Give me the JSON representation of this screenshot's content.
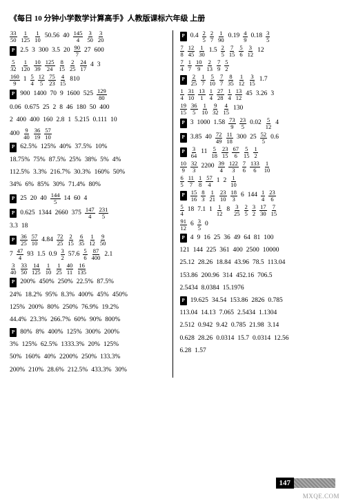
{
  "title": "《每日 10 分钟小学数学计算高手》人教版课标六年级  上册",
  "L": [
    [
      "f:33/50",
      "f:1/125",
      "f:1/10",
      "50.56",
      "40",
      "f:145/4",
      "f:3/50",
      "f:3/20"
    ],
    [
      "T",
      "2.5",
      "3",
      "300",
      "3.5",
      "20",
      "f:90/7",
      "27",
      "600"
    ],
    [
      "f:5/32",
      "f:1/120",
      "f:10/39",
      "f:125/24",
      "f:8/15",
      "f:2/25",
      "f:24/17",
      "4",
      "3"
    ],
    [
      "f:160/9",
      "1",
      "f:5/4",
      "f:12/5",
      "f:75/23",
      "f:4/15",
      "810"
    ],
    [
      "T",
      "900",
      "1400",
      "70",
      "9",
      "1600",
      "525",
      "f:129/80"
    ],
    [
      "0.06",
      "0.675",
      "25",
      "2",
      "8",
      "46",
      "180",
      "50",
      "400"
    ],
    [
      "2",
      "400",
      "400",
      "160",
      "2.8",
      "1",
      "5.215",
      "0.111",
      "10"
    ],
    [
      "400",
      "f:9/40",
      "f:36/19",
      "f:57/10"
    ],
    [
      "T",
      "62.5%",
      "125%",
      "40%",
      "37.5%",
      "10%"
    ],
    [
      "18.75%",
      "75%",
      "87.5%",
      "25%",
      "38%",
      "5%",
      "4%"
    ],
    [
      "112.5%",
      "3.3%",
      "216.7%",
      "30.3%",
      "160%",
      "50%"
    ],
    [
      "34%",
      "6%",
      "85%",
      "30%",
      "71.4%",
      "80%"
    ],
    [
      "T",
      "25",
      "20",
      "40",
      "f:144/5",
      "14",
      "60",
      "4"
    ],
    [
      "T",
      "0.625",
      "1344",
      "2660",
      "375",
      "f:147/4",
      "f:231/5"
    ],
    [
      "3.3",
      "18"
    ],
    [
      "T",
      "f:36/25",
      "f:57/10",
      "4.84",
      "f:72/25",
      "f:2/15",
      "f:6/35",
      "f:1/12",
      "f:9/50"
    ],
    [
      "7",
      "f:47/4",
      "93",
      "1.5",
      "0.9",
      "f:3/2",
      "57.6",
      "f:5/6",
      "f:87/400",
      "2.1"
    ],
    [
      "f:3/40",
      "f:33/50",
      "f:14/125",
      "f:1/10",
      "f:1/25",
      "f:40/11",
      "f:16/135"
    ],
    [
      "T",
      "200%",
      "450%",
      "250%",
      "22.5%",
      "87.5%"
    ],
    [
      "24%",
      "18.2%",
      "95%",
      "8.3%",
      "400%",
      "45%",
      "450%"
    ],
    [
      "125%",
      "200%",
      "80%",
      "250%",
      "76.9%",
      "19.2%"
    ],
    [
      "44.4%",
      "23.3%",
      "266.7%",
      "60%",
      "90%",
      "800%"
    ],
    [
      "T",
      "80%",
      "8%",
      "400%",
      "125%",
      "300%",
      "200%"
    ],
    [
      "3%",
      "125%",
      "62.5%",
      "1333.3%",
      "20%",
      "125%"
    ],
    [
      "50%",
      "160%",
      "40%",
      "2200%",
      "250%",
      "133.3%"
    ],
    [
      "200%",
      "210%",
      "28.6%",
      "212.5%",
      "433.3%",
      "30%"
    ]
  ],
  "R": [
    [
      "T",
      "0.4",
      "f:2/5",
      "f:2/7",
      "f:1/90",
      "0.19",
      "f:4/9",
      "0.18",
      "f:3/5"
    ],
    [
      "f:7/8",
      "f:12/45",
      "f:1/30",
      "1.5",
      "f:2/5",
      "f:7/15",
      "f:5/6",
      "f:3/12",
      "12"
    ],
    [
      "f:7/4",
      "f:1/7",
      "f:10/9",
      "f:2/13",
      "f:7/9",
      "f:5/2"
    ],
    [
      "T",
      "f:2/25",
      "f:1/7",
      "f:5/10",
      "f:7/7",
      "f:8/35",
      "f:1/12",
      "f:3/15",
      "1.7"
    ],
    [
      "f:1/4",
      "f:31/10",
      "f:13/1",
      "f:1/4",
      "f:27/28",
      "f:1/4",
      "f:13/12",
      "45",
      "3.26",
      "3"
    ],
    [
      "f:19/15",
      "f:36/5",
      "f:1/10",
      "f:9/32",
      "f:4/15",
      "130"
    ],
    [
      "T",
      "3",
      "1000",
      "1.58",
      "f:73/9",
      "f:23/5",
      "0.02",
      "f:5/12",
      "4"
    ],
    [
      "T",
      "3.85",
      "40",
      "f:72/49",
      "f:11/18",
      "300",
      "25",
      "f:52/5",
      "0.6"
    ],
    [
      "T",
      "f:3/64",
      "11",
      "f:5/18",
      "f:23/15",
      "f:67/6",
      "f:5/15",
      "f:1/2"
    ],
    [
      "f:10/9",
      "f:32/3",
      "2200",
      "f:39/4",
      "f:122/3",
      "f:7/6",
      "f:133/6",
      "f:1/10"
    ],
    [
      "f:6/5",
      "f:11/7",
      "f:1/8",
      "f:57/4",
      "1",
      "2",
      "f:1/10"
    ],
    [
      "T",
      "f:15/16",
      "f:8/3",
      "f:1/21",
      "f:23/10",
      "f:18/3",
      "6",
      "144",
      "f:1/4",
      "f:23/6"
    ],
    [
      "f:5/4",
      "18",
      "7.1",
      "1",
      "f:1/12",
      "8",
      "f:3/25",
      "f:2/5",
      "f:3/2",
      "f:17/30",
      "f:7/15"
    ],
    [
      "f:91/12",
      "6",
      "f:3/5",
      "0"
    ],
    [
      "T",
      "4",
      "9",
      "16",
      "25",
      "36",
      "49",
      "64",
      "81",
      "100"
    ],
    [
      "121",
      "144",
      "225",
      "361",
      "400",
      "2500",
      "10000"
    ],
    [
      "25.12",
      "28.26",
      "18.84",
      "43.96",
      "78.5",
      "113.04"
    ],
    [
      "153.86",
      "200.96",
      "314",
      "452.16",
      "706.5"
    ],
    [
      "2.5434",
      "8.0384",
      "15.1976"
    ],
    [
      "T",
      "19.625",
      "34.54",
      "153.86",
      "2826",
      "0.785"
    ],
    [
      "113.04",
      "14.13",
      "7.065",
      "2.5434",
      "1.1304"
    ],
    [
      "2.512",
      "0.942",
      "9.42",
      "0.785",
      "21.98",
      "3.14"
    ],
    [
      "0.628",
      "28.26",
      "0.0314",
      "15.7",
      "0.0314",
      "12.56"
    ],
    [
      "6.28",
      "1.57"
    ]
  ],
  "pagenum": "147",
  "watermark": "MXQE.COM"
}
